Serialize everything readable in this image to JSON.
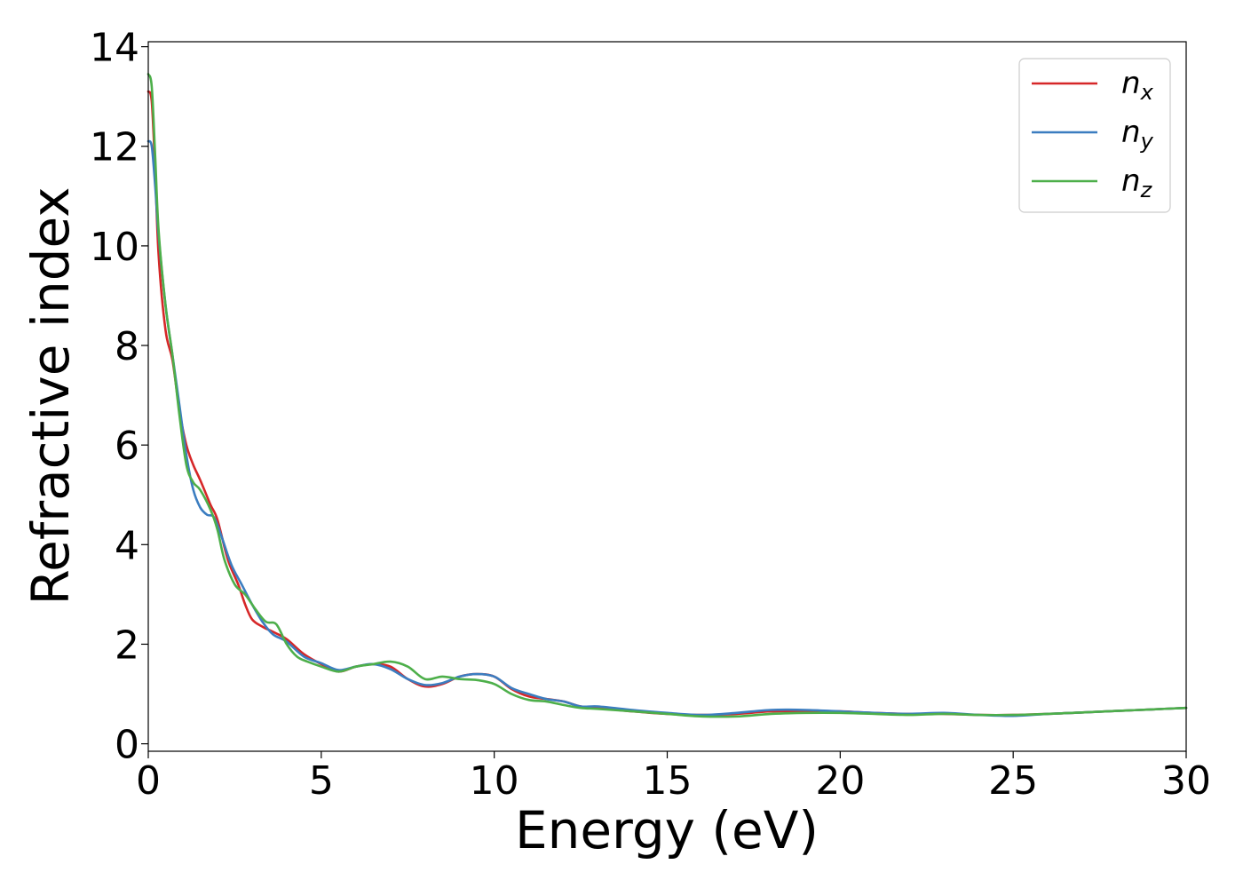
{
  "chart_data": {
    "type": "line",
    "xlabel": "Energy (eV)",
    "ylabel": "Refractive index",
    "xlim": [
      0,
      30
    ],
    "ylim": [
      -0.15,
      14.1
    ],
    "xticks": [
      "0",
      "5",
      "10",
      "15",
      "20",
      "25",
      "30"
    ],
    "yticks": [
      "0",
      "2",
      "4",
      "6",
      "8",
      "10",
      "12",
      "14"
    ],
    "grid": false,
    "legend_position": "top-right",
    "series": [
      {
        "name": "n",
        "subscript": "x",
        "color": "#d62728",
        "x": [
          0,
          0.1,
          0.2,
          0.3,
          0.5,
          0.7,
          0.9,
          1.1,
          1.3,
          1.5,
          1.8,
          2.0,
          2.3,
          2.6,
          2.8,
          3.0,
          3.3,
          3.6,
          4.0,
          4.5,
          5.0,
          5.5,
          6.0,
          6.5,
          7.0,
          7.5,
          8.0,
          8.5,
          9.0,
          9.5,
          10.0,
          10.5,
          11.0,
          11.5,
          12.0,
          12.5,
          13.0,
          14.0,
          15.0,
          16.0,
          17.0,
          18.0,
          19.0,
          20.0,
          21.0,
          22.0,
          23.0,
          24.0,
          25.0,
          26.0,
          27.0,
          28.0,
          29.0,
          30.0
        ],
        "y": [
          13.1,
          12.9,
          11.5,
          9.8,
          8.3,
          7.7,
          6.7,
          6.0,
          5.6,
          5.3,
          4.8,
          4.5,
          3.7,
          3.2,
          2.8,
          2.5,
          2.35,
          2.25,
          2.1,
          1.8,
          1.6,
          1.45,
          1.55,
          1.6,
          1.55,
          1.3,
          1.15,
          1.2,
          1.35,
          1.4,
          1.35,
          1.1,
          0.95,
          0.9,
          0.85,
          0.75,
          0.72,
          0.65,
          0.6,
          0.58,
          0.6,
          0.65,
          0.65,
          0.65,
          0.62,
          0.6,
          0.6,
          0.58,
          0.58,
          0.6,
          0.63,
          0.66,
          0.69,
          0.72
        ]
      },
      {
        "name": "n",
        "subscript": "y",
        "color": "#3b7dc0",
        "x": [
          0,
          0.1,
          0.2,
          0.3,
          0.5,
          0.7,
          0.9,
          1.1,
          1.3,
          1.5,
          1.7,
          1.9,
          2.1,
          2.4,
          2.7,
          3.0,
          3.3,
          3.6,
          4.0,
          4.5,
          5.0,
          5.5,
          6.0,
          6.5,
          7.0,
          7.5,
          8.0,
          8.5,
          9.0,
          9.5,
          10.0,
          10.5,
          11.0,
          11.5,
          12.0,
          12.5,
          13.0,
          14.0,
          15.0,
          16.0,
          17.0,
          18.0,
          19.0,
          20.0,
          21.0,
          22.0,
          23.0,
          24.0,
          25.0,
          26.0,
          27.0,
          28.0,
          29.0,
          30.0
        ],
        "y": [
          12.1,
          12.0,
          11.2,
          10.2,
          8.8,
          7.8,
          6.8,
          5.8,
          5.1,
          4.75,
          4.6,
          4.55,
          4.2,
          3.6,
          3.2,
          2.8,
          2.45,
          2.2,
          2.05,
          1.75,
          1.62,
          1.48,
          1.55,
          1.6,
          1.5,
          1.3,
          1.18,
          1.22,
          1.35,
          1.4,
          1.35,
          1.12,
          1.0,
          0.9,
          0.85,
          0.75,
          0.75,
          0.68,
          0.62,
          0.58,
          0.62,
          0.68,
          0.68,
          0.65,
          0.62,
          0.6,
          0.62,
          0.58,
          0.56,
          0.6,
          0.63,
          0.66,
          0.69,
          0.72
        ]
      },
      {
        "name": "n",
        "subscript": "z",
        "color": "#4daf4a",
        "x": [
          0,
          0.1,
          0.2,
          0.3,
          0.5,
          0.7,
          0.9,
          1.1,
          1.3,
          1.5,
          1.8,
          2.0,
          2.2,
          2.5,
          2.8,
          3.1,
          3.4,
          3.7,
          4.0,
          4.3,
          4.6,
          5.0,
          5.5,
          6.0,
          6.5,
          7.0,
          7.5,
          8.0,
          8.5,
          9.0,
          9.5,
          10.0,
          10.5,
          11.0,
          11.5,
          12.0,
          12.5,
          13.0,
          14.0,
          15.0,
          16.0,
          17.0,
          18.0,
          19.0,
          20.0,
          21.0,
          22.0,
          23.0,
          24.0,
          25.0,
          26.0,
          27.0,
          28.0,
          29.0,
          30.0
        ],
        "y": [
          13.45,
          13.2,
          11.8,
          10.3,
          8.8,
          7.8,
          6.6,
          5.6,
          5.25,
          5.1,
          4.7,
          4.3,
          3.7,
          3.2,
          3.0,
          2.7,
          2.45,
          2.4,
          2.0,
          1.75,
          1.65,
          1.55,
          1.45,
          1.55,
          1.6,
          1.65,
          1.55,
          1.3,
          1.35,
          1.3,
          1.28,
          1.2,
          1.0,
          0.88,
          0.85,
          0.78,
          0.72,
          0.7,
          0.65,
          0.6,
          0.55,
          0.55,
          0.6,
          0.62,
          0.62,
          0.6,
          0.58,
          0.6,
          0.58,
          0.58,
          0.6,
          0.63,
          0.66,
          0.69,
          0.72
        ]
      }
    ]
  }
}
